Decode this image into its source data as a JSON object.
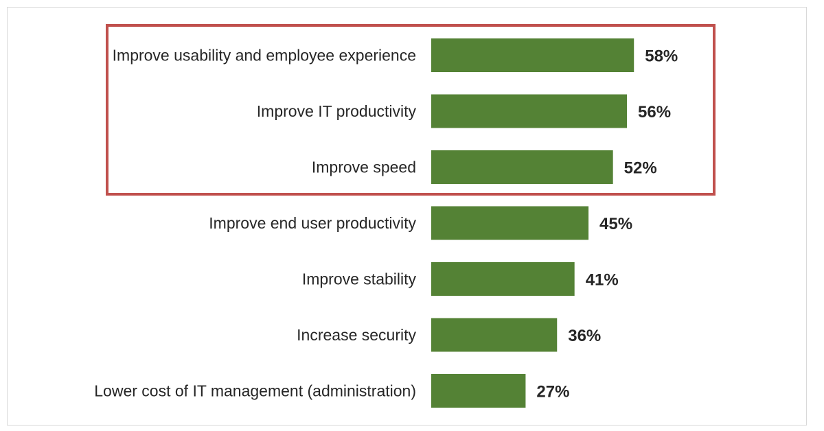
{
  "chart_data": {
    "type": "bar",
    "orientation": "horizontal",
    "categories": [
      "Improve usability and employee experience",
      "Improve IT productivity",
      "Improve speed",
      "Improve end user productivity",
      "Improve stability",
      "Increase security",
      "Lower cost of IT management (administration)"
    ],
    "values": [
      58,
      56,
      52,
      45,
      41,
      36,
      27
    ],
    "value_labels": [
      "58%",
      "56%",
      "52%",
      "45%",
      "41%",
      "36%",
      "27%"
    ],
    "unit": "%",
    "xlim": [
      0,
      100
    ],
    "bar_color": "#548235",
    "highlight": {
      "categories": [
        "Improve usability and employee experience",
        "Improve IT productivity",
        "Improve speed"
      ],
      "border_color": "#c0504d"
    },
    "grid": false,
    "legend": "none"
  }
}
